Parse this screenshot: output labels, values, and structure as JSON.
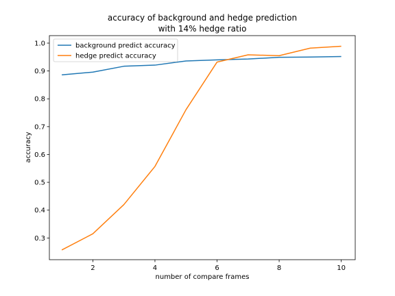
{
  "chart_data": {
    "type": "line",
    "title_line1": "accuracy of background and hedge prediction",
    "title_line2": "with 14% hedge ratio",
    "xlabel": "number of compare frames",
    "ylabel": "accuracy",
    "xlim": [
      0.6,
      10.45
    ],
    "ylim": [
      0.222,
      1.027
    ],
    "xticks": [
      2,
      4,
      6,
      8,
      10
    ],
    "yticks": [
      0.3,
      0.4,
      0.5,
      0.6,
      0.7,
      0.8,
      0.9,
      1.0
    ],
    "ytick_labels": [
      "0.3",
      "0.4",
      "0.5",
      "0.6",
      "0.7",
      "0.8",
      "0.9",
      "1.0"
    ],
    "grid": false,
    "legend_position": "upper-left",
    "x": [
      1,
      2,
      3,
      4,
      5,
      6,
      7,
      8,
      9,
      10
    ],
    "series": [
      {
        "name": "background predict accuracy",
        "color": "#1f77b4",
        "values": [
          0.886,
          0.896,
          0.917,
          0.921,
          0.936,
          0.94,
          0.943,
          0.949,
          0.95,
          0.952
        ]
      },
      {
        "name": "hedge predict accuracy",
        "color": "#ff7f0e",
        "values": [
          0.257,
          0.315,
          0.42,
          0.557,
          0.761,
          0.932,
          0.958,
          0.955,
          0.982,
          0.989
        ]
      }
    ]
  }
}
